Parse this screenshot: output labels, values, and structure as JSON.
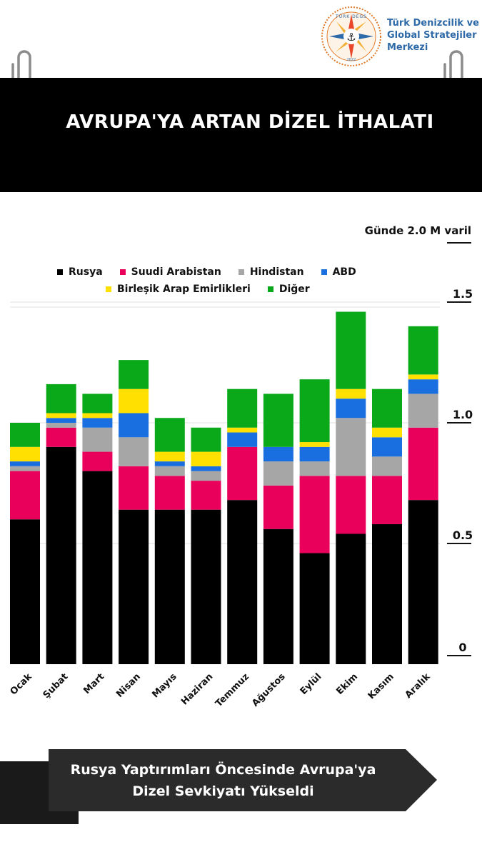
{
  "header": {
    "org_name": "Türk Denizcilik ve Global Stratejiler Merkezi",
    "logo_top_text": "TÜRK DEGS",
    "logo_year": "2022",
    "title": "AVRUPA'YA ARTAN DİZEL İTHALATI"
  },
  "footer": {
    "line1": "Rusya Yaptırımları Öncesinde Avrupa'ya",
    "line2": "Dizel Sevkiyatı Yükseldi"
  },
  "colors": {
    "background": "#ffffff",
    "title_bar": "#000000",
    "org_text": "#2f6aa8"
  },
  "chart_data": {
    "type": "bar",
    "stacked": true,
    "unit_label": "Günde 2.0 M varil",
    "categories": [
      "Ocak",
      "Şubat",
      "Mart",
      "Nisan",
      "Mayıs",
      "Haziran",
      "Temmuz",
      "Ağustos",
      "Eylül",
      "Ekim",
      "Kasım",
      "Aralık"
    ],
    "series": [
      {
        "name": "Rusya",
        "color": "#000000",
        "values": [
          0.6,
          0.9,
          0.8,
          0.64,
          0.64,
          0.64,
          0.68,
          0.56,
          0.46,
          0.54,
          0.58,
          0.68
        ]
      },
      {
        "name": "Suudi Arabistan",
        "color": "#e8005a",
        "values": [
          0.2,
          0.08,
          0.08,
          0.18,
          0.14,
          0.12,
          0.22,
          0.18,
          0.32,
          0.24,
          0.2,
          0.3
        ]
      },
      {
        "name": "Hindistan",
        "color": "#a6a6a6",
        "values": [
          0.02,
          0.02,
          0.1,
          0.12,
          0.04,
          0.04,
          0.0,
          0.1,
          0.06,
          0.24,
          0.08,
          0.14
        ]
      },
      {
        "name": "ABD",
        "color": "#1a6fe0",
        "values": [
          0.02,
          0.02,
          0.04,
          0.1,
          0.02,
          0.02,
          0.06,
          0.06,
          0.06,
          0.08,
          0.08,
          0.06
        ]
      },
      {
        "name": "Birleşik Arap Emirlikleri",
        "color": "#ffe000",
        "values": [
          0.06,
          0.02,
          0.02,
          0.1,
          0.04,
          0.06,
          0.02,
          0.0,
          0.02,
          0.04,
          0.04,
          0.02
        ]
      },
      {
        "name": "Diğer",
        "color": "#0aa91a",
        "values": [
          0.1,
          0.12,
          0.08,
          0.12,
          0.14,
          0.1,
          0.16,
          0.22,
          0.26,
          0.32,
          0.16,
          0.2
        ]
      }
    ],
    "y_ticks": [
      "0",
      "0.5",
      "1.0",
      "1.5"
    ],
    "y_tick_values": [
      0,
      0.5,
      1.0,
      1.5
    ],
    "ylim": [
      0,
      1.8
    ],
    "grid": true,
    "legend_position": "top",
    "xlabel": "",
    "ylabel": ""
  }
}
